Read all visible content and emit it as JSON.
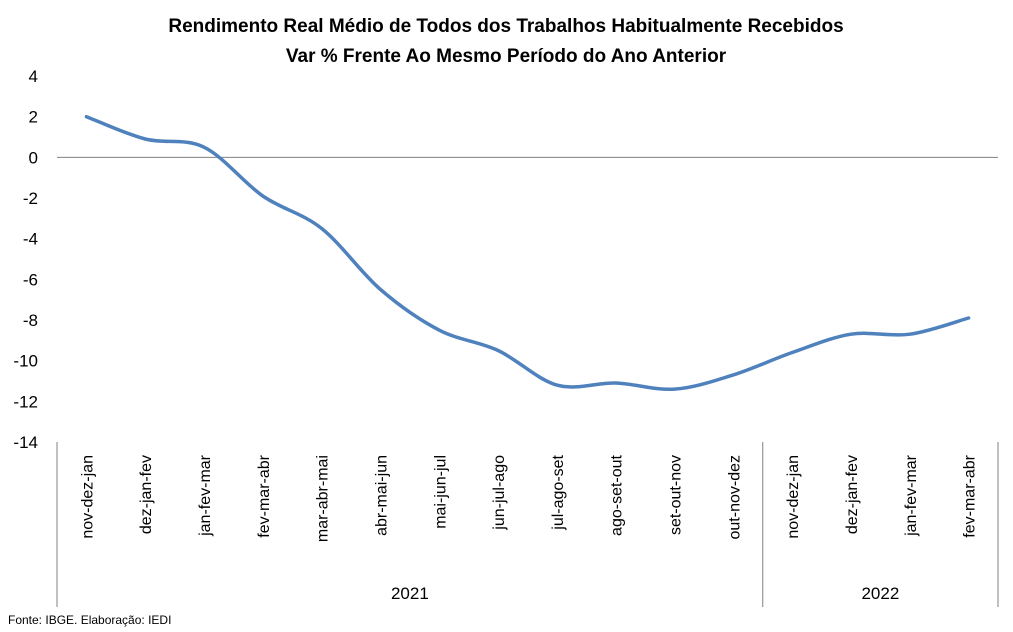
{
  "chart_data": {
    "type": "line",
    "title": "Rendimento Real Médio de Todos dos Trabalhos Habitualmente Recebidos",
    "subtitle": "Var % Frente Ao Mesmo Período do Ano Anterior",
    "categories": [
      "nov-dez-jan",
      "dez-jan-fev",
      "jan-fev-mar",
      "fev-mar-abr",
      "mar-abr-mai",
      "abr-mai-jun",
      "mai-jun-jul",
      "jun-jul-ago",
      "jul-ago-set",
      "ago-set-out",
      "set-out-nov",
      "out-nov-dez",
      "nov-dez-jan",
      "dez-jan-fev",
      "jan-fev-mar",
      "fev-mar-abr"
    ],
    "groups": [
      {
        "label": "2021",
        "count": 12
      },
      {
        "label": "2022",
        "count": 4
      }
    ],
    "series": [
      {
        "values": [
          2.0,
          0.9,
          0.5,
          -1.9,
          -3.5,
          -6.5,
          -8.5,
          -9.5,
          -11.2,
          -11.1,
          -11.4,
          -10.7,
          -9.6,
          -8.7,
          -8.7,
          -7.9
        ]
      }
    ],
    "ylim": [
      -14,
      4
    ],
    "yticks": [
      "4",
      "2",
      "0",
      "-2",
      "-4",
      "-6",
      "-8",
      "-10",
      "-12",
      "-14"
    ],
    "line_color": "#4F81BD",
    "source": "Fonte: IBGE. Elaboração: IEDI"
  }
}
